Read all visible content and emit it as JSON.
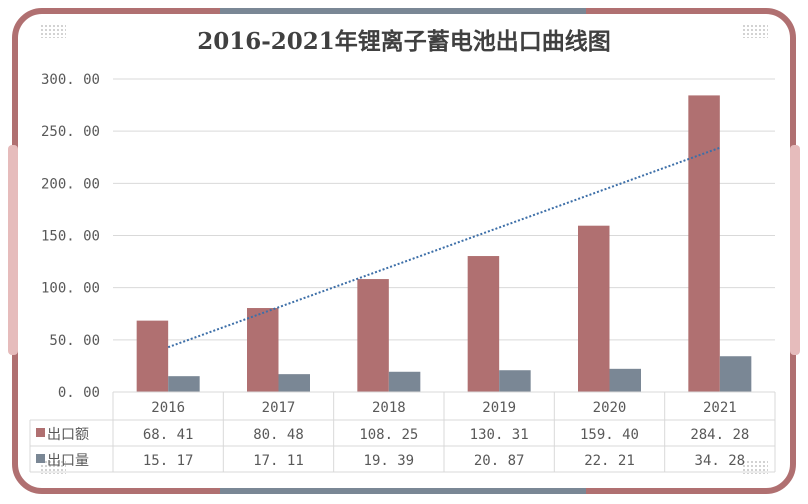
{
  "chart_data": {
    "type": "bar",
    "title": "2016-2021年锂离子蓄电池出口曲线图",
    "categories": [
      "2016",
      "2017",
      "2018",
      "2019",
      "2020",
      "2021"
    ],
    "series": [
      {
        "name": "出口额",
        "color": "#b07071",
        "values": [
          68.41,
          80.48,
          108.25,
          130.31,
          159.4,
          284.28
        ],
        "labels": [
          "68.41",
          "80.48",
          "108.25",
          "130.31",
          "159.40",
          "284.28"
        ]
      },
      {
        "name": "出口量",
        "color": "#7a8795",
        "values": [
          15.17,
          17.11,
          19.39,
          20.87,
          22.21,
          34.28
        ],
        "labels": [
          "15.17",
          "17.11",
          "19.39",
          "20.87",
          "22.21",
          "34.28"
        ]
      }
    ],
    "trendline": {
      "series": "出口额",
      "type": "linear",
      "style": "dotted",
      "color": "#3d6fa8"
    },
    "ylim": [
      0,
      300
    ],
    "yticks": [
      "0.00",
      "50.00",
      "100.00",
      "150.00",
      "200.00",
      "250.00",
      "300.00"
    ],
    "grid": true,
    "legend": "data-table"
  }
}
